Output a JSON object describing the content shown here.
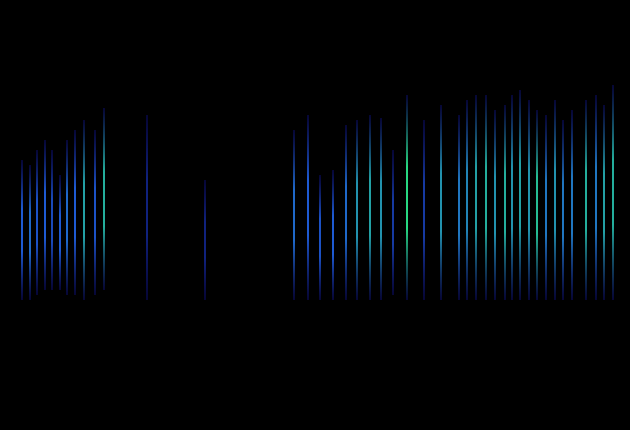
{
  "chart_data": {
    "type": "spectrogram",
    "tick_labels": false,
    "grid": false,
    "xlim": [
      0,
      630
    ],
    "ylim": [
      0,
      430
    ],
    "pulses": {
      "t": [
        22,
        30,
        37,
        45,
        52,
        60,
        67,
        75,
        84,
        95,
        104,
        147,
        205,
        294,
        308,
        320,
        333,
        346,
        357,
        370,
        381,
        393,
        407,
        424,
        441,
        459,
        467,
        476,
        486,
        495,
        505,
        512,
        520,
        529,
        537,
        546,
        555,
        563,
        572,
        586,
        596,
        604,
        613
      ],
      "f_low": [
        130,
        130,
        135,
        140,
        140,
        140,
        135,
        135,
        130,
        135,
        140,
        130,
        130,
        130,
        130,
        130,
        130,
        130,
        130,
        130,
        130,
        135,
        130,
        130,
        130,
        130,
        130,
        130,
        130,
        130,
        130,
        130,
        130,
        130,
        130,
        130,
        130,
        130,
        130,
        130,
        130,
        130,
        130
      ],
      "f_high": [
        270,
        265,
        280,
        290,
        280,
        255,
        290,
        300,
        310,
        300,
        322,
        315,
        250,
        300,
        315,
        255,
        260,
        305,
        310,
        315,
        312,
        280,
        335,
        310,
        325,
        315,
        330,
        335,
        335,
        320,
        325,
        335,
        340,
        330,
        320,
        315,
        330,
        310,
        320,
        330,
        335,
        325,
        345
      ],
      "intensity": [
        0.5,
        0.55,
        0.45,
        0.5,
        0.4,
        0.5,
        0.55,
        0.5,
        0.75,
        0.45,
        0.8,
        0.15,
        0.15,
        0.55,
        0.5,
        0.45,
        0.5,
        0.55,
        0.7,
        0.75,
        0.7,
        0.3,
        0.95,
        0.3,
        0.7,
        0.6,
        0.65,
        0.75,
        0.8,
        0.7,
        0.8,
        0.7,
        0.75,
        0.7,
        0.85,
        0.6,
        0.7,
        0.6,
        0.6,
        0.8,
        0.6,
        0.75,
        0.8
      ]
    }
  }
}
